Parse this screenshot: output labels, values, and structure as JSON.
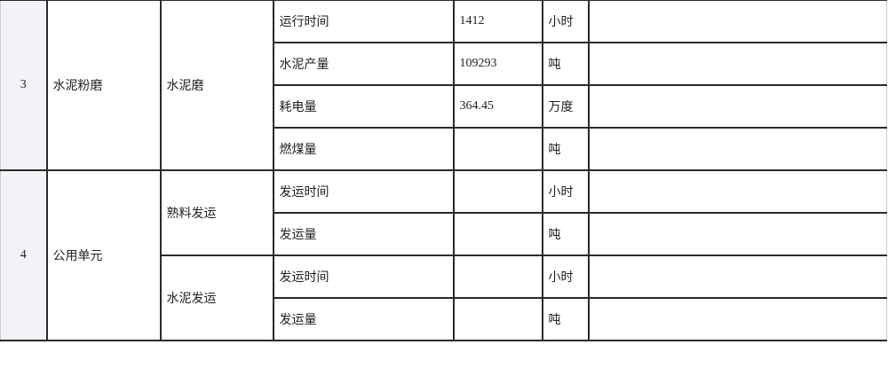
{
  "groups": [
    {
      "index": "3",
      "section": "水泥粉磨",
      "subgroups": [
        {
          "name": "水泥磨",
          "rows": [
            {
              "item": "运行时间",
              "value": "1412",
              "unit": "小时",
              "note": ""
            },
            {
              "item": "水泥产量",
              "value": "109293",
              "unit": "吨",
              "note": ""
            },
            {
              "item": "耗电量",
              "value": "364.45",
              "unit": "万度",
              "note": ""
            },
            {
              "item": "燃煤量",
              "value": "",
              "unit": "吨",
              "note": ""
            }
          ]
        }
      ]
    },
    {
      "index": "4",
      "section": "公用单元",
      "subgroups": [
        {
          "name": "熟料发运",
          "rows": [
            {
              "item": "发运时间",
              "value": "",
              "unit": "小时",
              "note": ""
            },
            {
              "item": "发运量",
              "value": "",
              "unit": "吨",
              "note": ""
            }
          ]
        },
        {
          "name": "水泥发运",
          "rows": [
            {
              "item": "发运时间",
              "value": "",
              "unit": "小时",
              "note": ""
            },
            {
              "item": "发运量",
              "value": "",
              "unit": "吨",
              "note": ""
            }
          ]
        }
      ]
    }
  ]
}
